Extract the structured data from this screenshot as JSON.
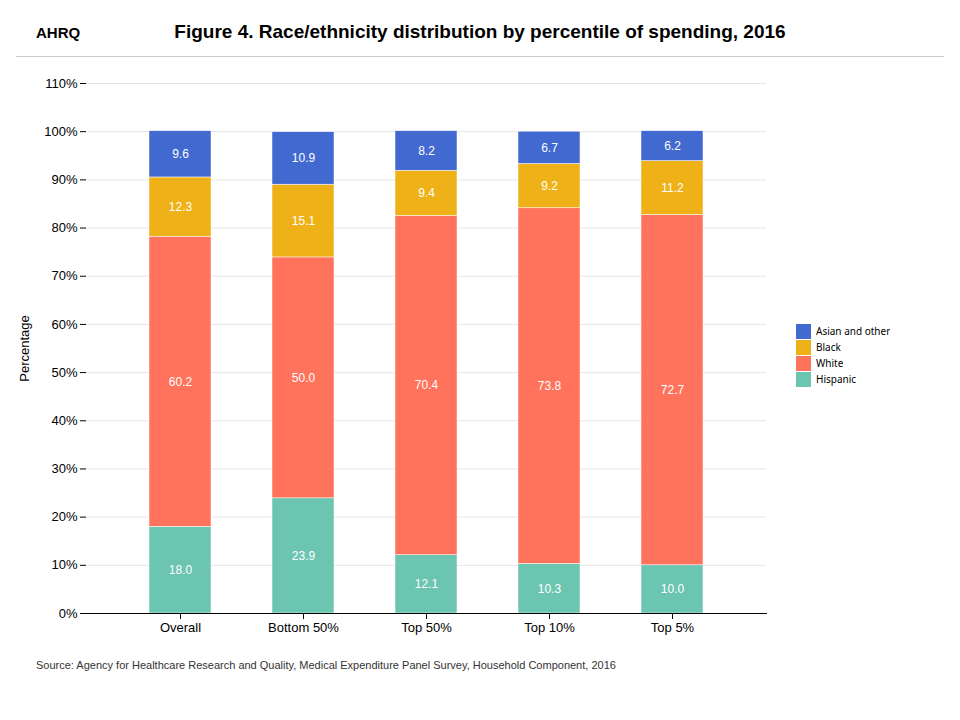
{
  "chart_data": {
    "type": "bar",
    "stacked": true,
    "title": "Figure 4. Race/ethnicity distribution by percentile of spending, 2016",
    "annotations": [
      "AHRQ",
      "Source: Agency for Healthcare Research and Quality, Medical Expenditure Panel Survey, Household Component, 2016"
    ],
    "categories": [
      "Overall",
      "Bottom 50%",
      "Top 50%",
      "Top 10%",
      "Top 5%"
    ],
    "series": [
      {
        "name": "Hispanic",
        "values": [
          18.0,
          23.9,
          12.1,
          10.3,
          10.0
        ],
        "value_labels": [
          "18.0",
          "23.9",
          "12.1",
          "10.3",
          "10.0"
        ]
      },
      {
        "name": "White",
        "values": [
          60.2,
          50.0,
          70.4,
          73.8,
          72.7
        ],
        "value_labels": [
          "60.2",
          "50.0",
          "70.4",
          "73.8",
          "72.7"
        ]
      },
      {
        "name": "Black",
        "values": [
          12.3,
          15.1,
          9.4,
          9.2,
          11.2
        ],
        "value_labels": [
          "12.3",
          "15.1",
          "9.4",
          "9.2",
          "11.2"
        ]
      },
      {
        "name": "Asian and other",
        "values": [
          9.6,
          10.9,
          8.2,
          6.7,
          6.2
        ],
        "value_labels": [
          "9.6",
          "10.9",
          "8.2",
          "6.7",
          "6.2"
        ]
      }
    ],
    "ylabel": "Percentage",
    "ylim": [
      0,
      110
    ],
    "yticks": [
      {
        "value": 0,
        "label": "0%"
      },
      {
        "value": 10,
        "label": "10%"
      },
      {
        "value": 20,
        "label": "20%"
      },
      {
        "value": 30,
        "label": "30%"
      },
      {
        "value": 40,
        "label": "40%"
      },
      {
        "value": 50,
        "label": "50%"
      },
      {
        "value": 60,
        "label": "60%"
      },
      {
        "value": 70,
        "label": "70%"
      },
      {
        "value": 80,
        "label": "80%"
      },
      {
        "value": 90,
        "label": "90%"
      },
      {
        "value": 100,
        "label": "100%"
      },
      {
        "value": 110,
        "label": "110%"
      }
    ],
    "grid": true,
    "legend": "right",
    "data_labels": true
  }
}
